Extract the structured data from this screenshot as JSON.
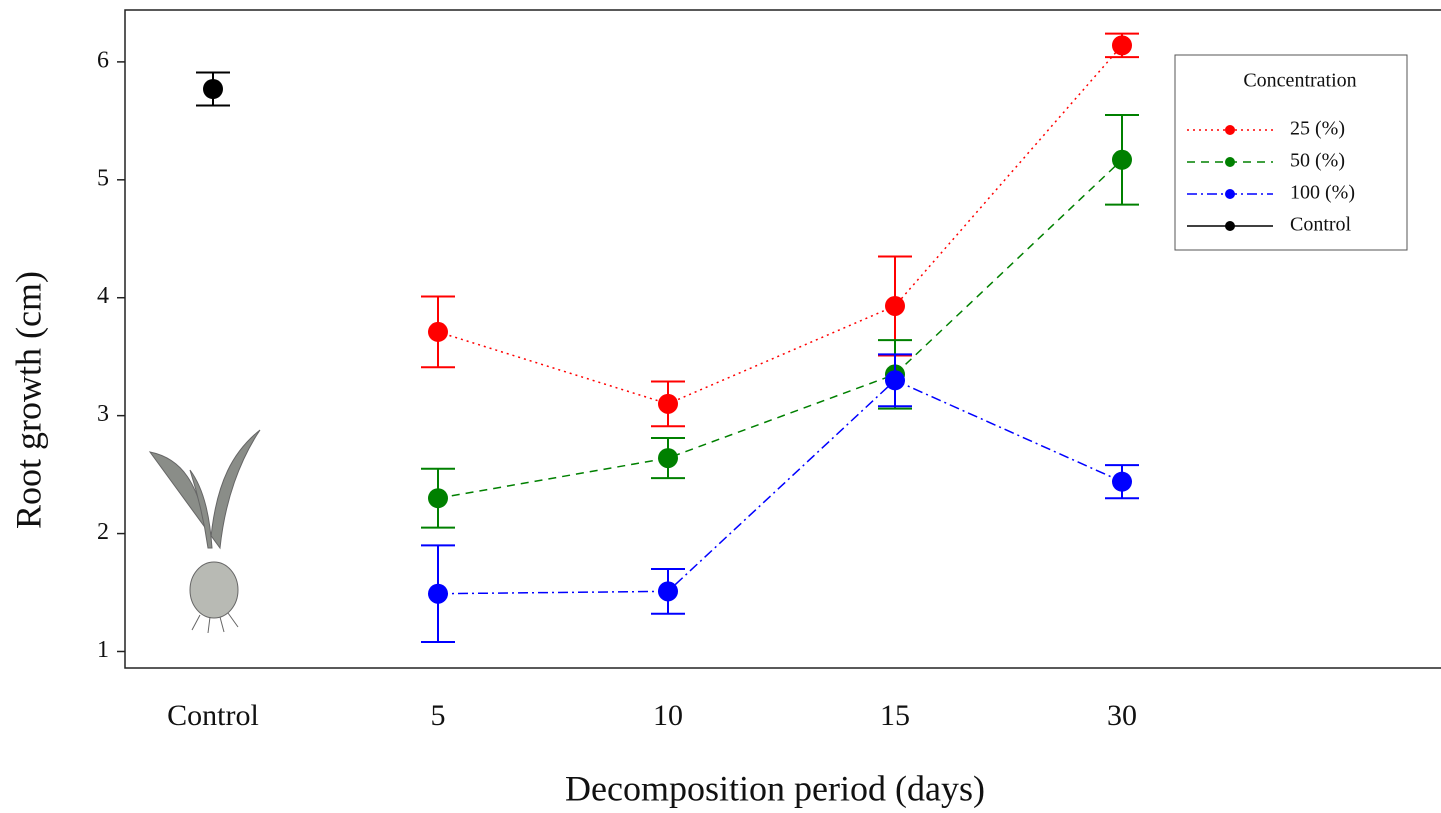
{
  "chart_data": {
    "type": "line",
    "xlabel": "Decomposition period (days)",
    "ylabel": "Root growth  (cm)",
    "categories": [
      "Control",
      "5",
      "10",
      "15",
      "30"
    ],
    "ylim": [
      0.86,
      6.44
    ],
    "yticks": [
      1,
      2,
      3,
      4,
      5,
      6
    ],
    "legend_title": "Concentration",
    "legend": "upper right",
    "series": [
      {
        "name": "25 (%)",
        "color": "#ff0000",
        "line_style": "dotted",
        "values": [
          null,
          3.71,
          3.1,
          3.93,
          6.14
        ],
        "errors": [
          null,
          0.3,
          0.19,
          0.42,
          0.1
        ]
      },
      {
        "name": "50 (%)",
        "color": "#008000",
        "line_style": "dashed",
        "values": [
          null,
          2.3,
          2.64,
          3.35,
          5.17
        ],
        "errors": [
          null,
          0.25,
          0.17,
          0.29,
          0.38
        ]
      },
      {
        "name": "100 (%)",
        "color": "#0000ff",
        "line_style": "dashdot",
        "values": [
          null,
          1.49,
          1.51,
          3.3,
          2.44
        ],
        "errors": [
          null,
          0.41,
          0.19,
          0.22,
          0.14
        ]
      },
      {
        "name": "Control",
        "color": "#000000",
        "line_style": "solid",
        "values": [
          5.77,
          null,
          null,
          null,
          null
        ],
        "errors": [
          0.14,
          null,
          null,
          null,
          null
        ]
      }
    ]
  }
}
